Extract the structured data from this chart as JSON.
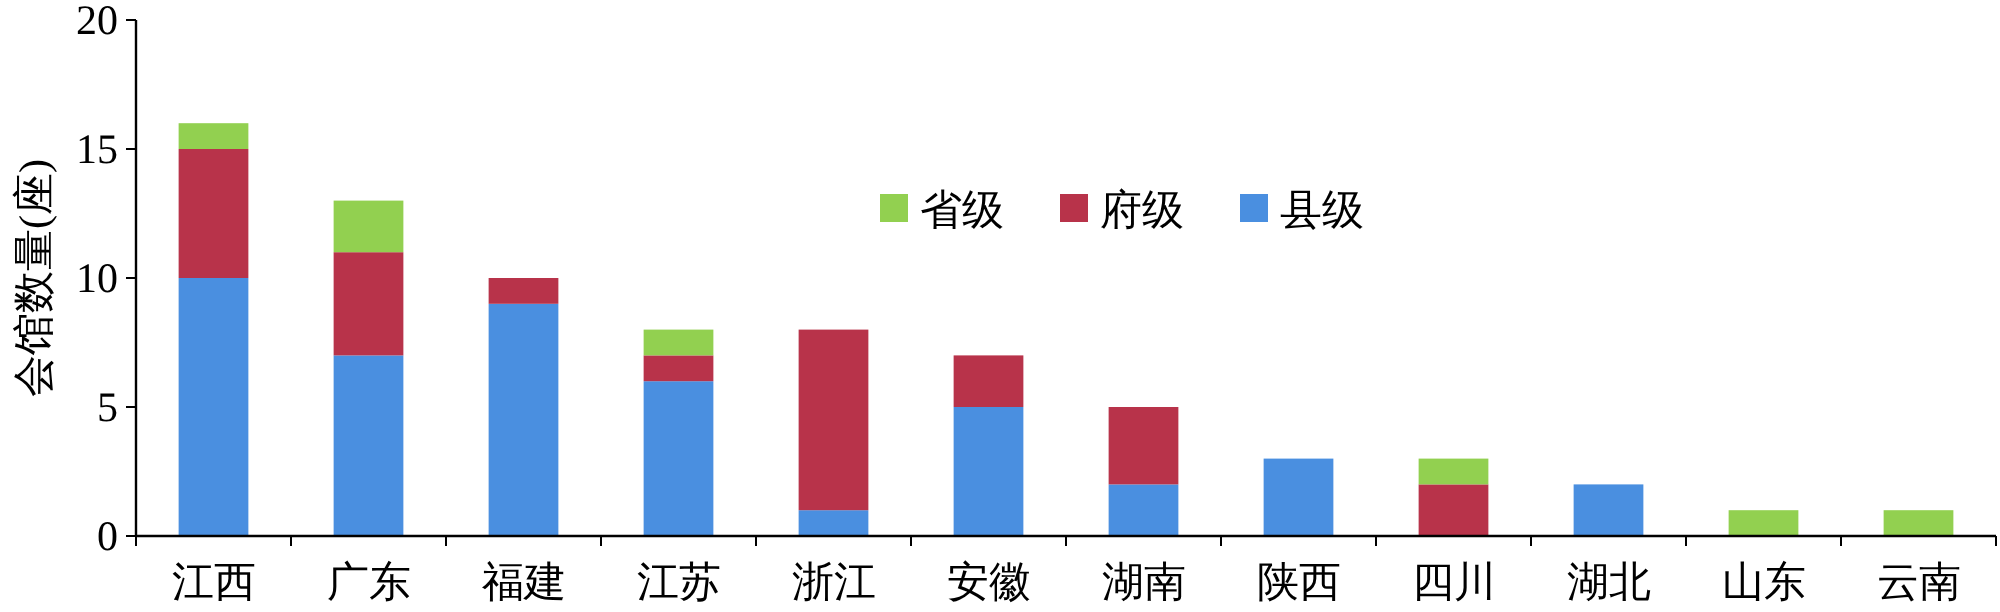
{
  "chart_data": {
    "type": "bar",
    "stacked": true,
    "ylabel": "会馆数量(座)",
    "categories": [
      "江西",
      "广东",
      "福建",
      "江苏",
      "浙江",
      "安徽",
      "湖南",
      "陕西",
      "四川",
      "湖北",
      "山东",
      "云南"
    ],
    "series": [
      {
        "name": "县级",
        "color": "#4a8fe0",
        "values": [
          10,
          7,
          9,
          6,
          1,
          5,
          2,
          3,
          0,
          2,
          0,
          0
        ]
      },
      {
        "name": "府级",
        "color": "#b8334a",
        "values": [
          5,
          4,
          1,
          1,
          7,
          2,
          3,
          0,
          2,
          0,
          0,
          0
        ]
      },
      {
        "name": "省级",
        "color": "#92d050",
        "values": [
          1,
          2,
          0,
          1,
          0,
          0,
          0,
          0,
          1,
          0,
          1,
          1
        ]
      }
    ],
    "ylim": [
      0,
      20
    ],
    "yticks": [
      0,
      5,
      10,
      15,
      20
    ],
    "legend": "top"
  }
}
